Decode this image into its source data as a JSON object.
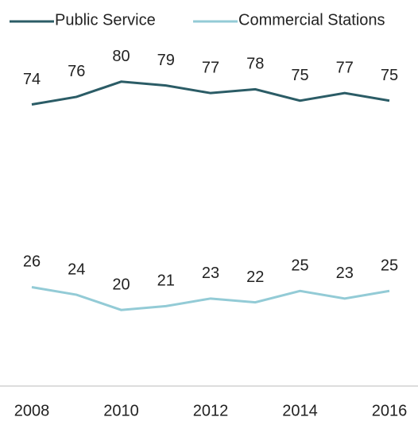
{
  "chart_data": {
    "type": "line",
    "x": [
      2008,
      2009,
      2010,
      2011,
      2012,
      2013,
      2014,
      2015,
      2016
    ],
    "xlim": [
      2008,
      2016
    ],
    "xticks": [
      2008,
      2010,
      2012,
      2014,
      2016
    ],
    "ylim": [
      0,
      100
    ],
    "legend": "top",
    "series": [
      {
        "name": "Public Service",
        "color": "#2b5c66",
        "values": [
          74,
          76,
          80,
          79,
          77,
          78,
          75,
          77,
          75
        ]
      },
      {
        "name": "Commercial Stations",
        "color": "#93cbd6",
        "values": [
          26,
          24,
          20,
          21,
          23,
          22,
          25,
          23,
          25
        ]
      }
    ]
  }
}
